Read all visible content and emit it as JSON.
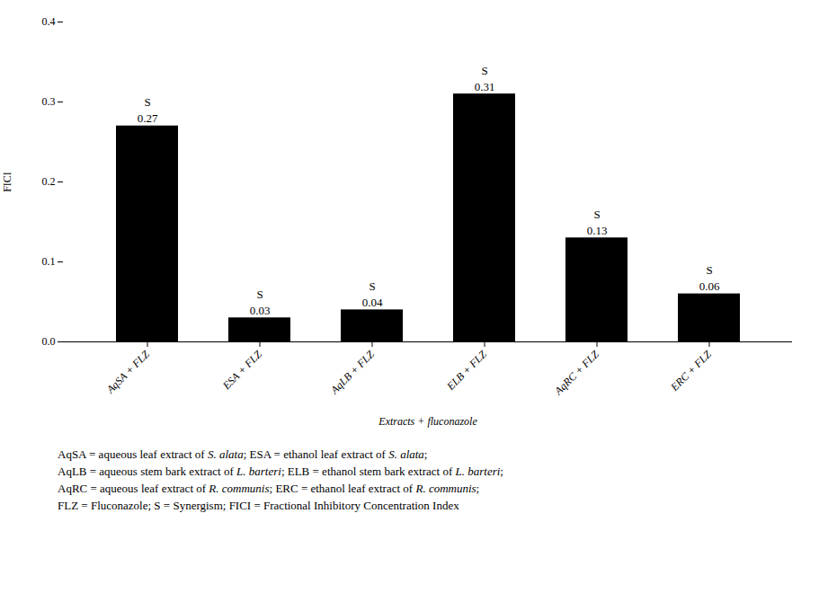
{
  "chart_data": {
    "type": "bar",
    "categories": [
      "AqSA + FLZ",
      "ESA + FLZ",
      "AqLB + FLZ",
      "ELB + FLZ",
      "AqRC + FLZ",
      "ERC + FLZ"
    ],
    "values": [
      0.27,
      0.03,
      0.04,
      0.31,
      0.13,
      0.06
    ],
    "data_labels": true,
    "annotations": [
      {
        "x": "AqSA + FLZ",
        "text": "S"
      },
      {
        "x": "ESA + FLZ",
        "text": "S"
      },
      {
        "x": "AqLB + FLZ",
        "text": "S"
      },
      {
        "x": "ELB + FLZ",
        "text": "S"
      },
      {
        "x": "AqRC + FLZ",
        "text": "S"
      },
      {
        "x": "ERC + FLZ",
        "text": "S"
      }
    ],
    "xlabel": "Extracts + fluconazole",
    "ylabel": "FICI",
    "ylim": [
      0,
      0.4
    ],
    "yticks": [
      {
        "value": 0.0,
        "label": "0.0"
      },
      0.1,
      0.2,
      0.3,
      0.4
    ],
    "grid": false,
    "footnote": [
      [
        {
          "text": "AqSA = aqueous leaf extract of ",
          "italic": false
        },
        {
          "text": "S. alata",
          "italic": true
        },
        {
          "text": "; ESA = ethanol leaf extract of ",
          "italic": false
        },
        {
          "text": "S. alata",
          "italic": true
        },
        {
          "text": ";",
          "italic": false
        }
      ],
      [
        {
          "text": "AqLB = aqueous stem bark extract of ",
          "italic": false
        },
        {
          "text": "L. barteri",
          "italic": true
        },
        {
          "text": "; ELB = ethanol stem bark extract of ",
          "italic": false
        },
        {
          "text": "L. barteri",
          "italic": true
        },
        {
          "text": ";",
          "italic": false
        }
      ],
      [
        {
          "text": "AqRC = aqueous leaf extract of ",
          "italic": false
        },
        {
          "text": "R. communis",
          "italic": true
        },
        {
          "text": "; ERC = ethanol leaf extract of ",
          "italic": false
        },
        {
          "text": "R. communis",
          "italic": true
        },
        {
          "text": ";",
          "italic": false
        }
      ],
      [
        {
          "text": "FLZ = Fluconazole; S = Synergism; FICI = Fractional Inhibitory Concentration Index",
          "italic": false
        }
      ]
    ]
  }
}
